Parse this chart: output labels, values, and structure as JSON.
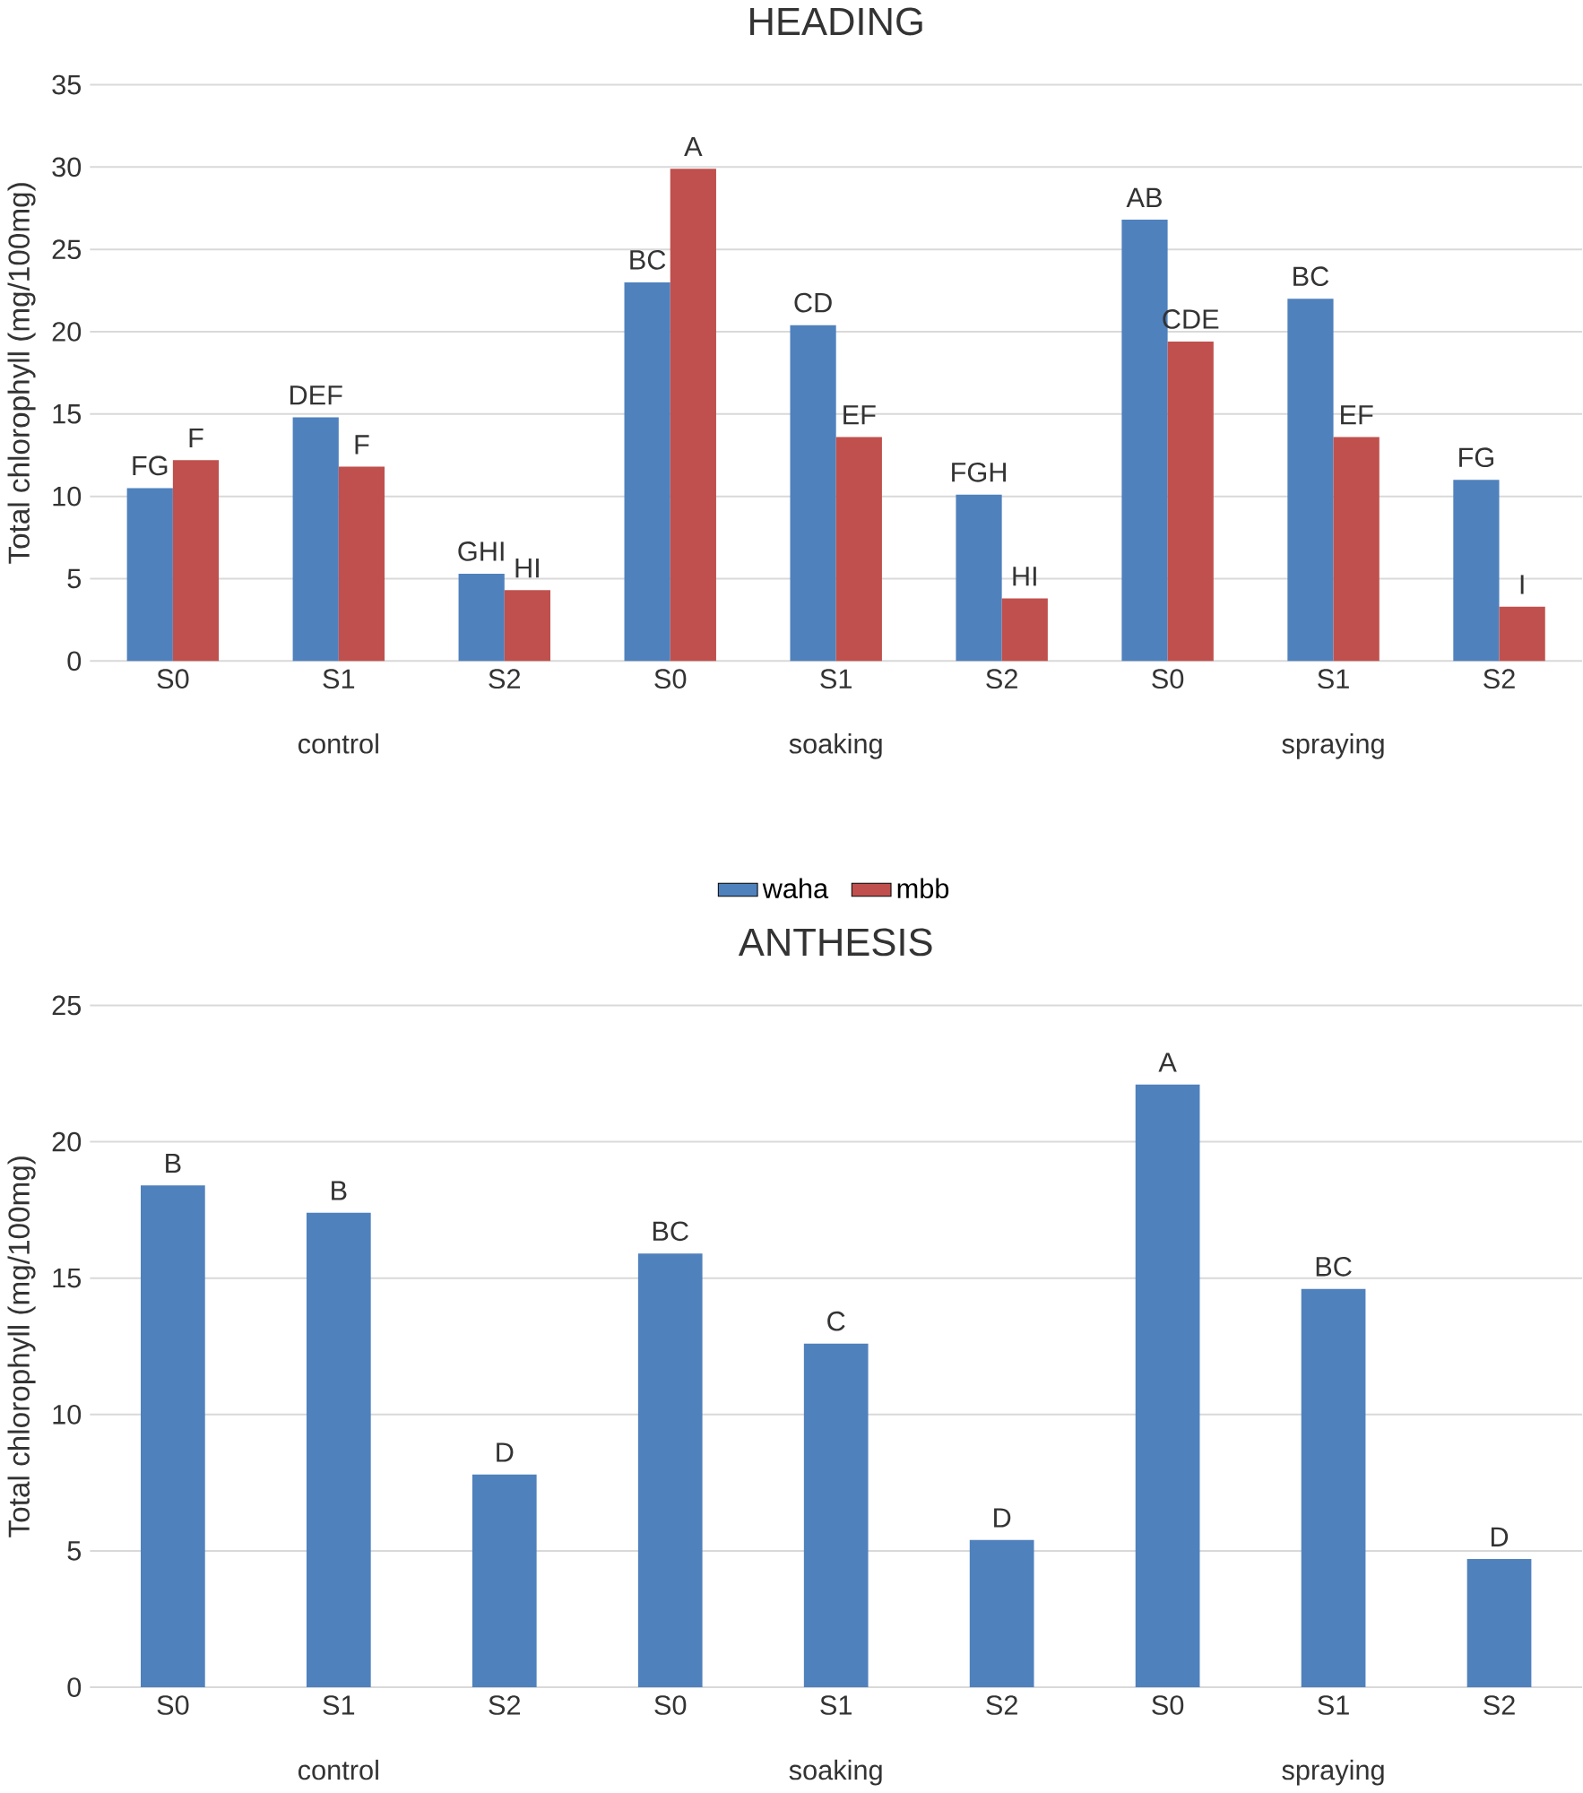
{
  "chart_data": [
    {
      "type": "bar",
      "title": "HEADING",
      "ylabel": "Total chlorophyll (mg/100mg)",
      "categories": [
        "S0",
        "S1",
        "S2",
        "S0",
        "S1",
        "S2",
        "S0",
        "S1",
        "S2"
      ],
      "series": [
        {
          "name": "waha",
          "color": "#4f81bd",
          "values": [
            10.5,
            14.8,
            5.3,
            23,
            20.4,
            10.1,
            26.8,
            22,
            11
          ],
          "value_labels": [
            "FG",
            "DEF",
            "GHI",
            "BC",
            "CD",
            "FGH",
            "AB",
            "BC",
            "FG"
          ]
        },
        {
          "name": "mbb",
          "color": "#c0504d",
          "values": [
            12.2,
            11.8,
            4.3,
            29.9,
            13.6,
            3.8,
            19.4,
            13.6,
            3.3
          ],
          "value_labels": [
            "F",
            "F",
            "HI",
            "A",
            "EF",
            "HI",
            "CDE",
            "EF",
            "I"
          ]
        }
      ],
      "ylim": [
        0,
        35
      ],
      "yticks": [
        0,
        5,
        10,
        15,
        20,
        25,
        30,
        35
      ],
      "grid": "y",
      "legend": "bottom",
      "annotations": [
        "control",
        "soaking",
        "spraying"
      ]
    },
    {
      "type": "bar",
      "title": "ANTHESIS",
      "ylabel": "Total chlorophyll (mg/100mg)",
      "categories": [
        "S0",
        "S1",
        "S2",
        "S0",
        "S1",
        "S2",
        "S0",
        "S1",
        "S2"
      ],
      "series": [
        {
          "color": "#4f81bd",
          "values": [
            18.4,
            17.4,
            7.8,
            15.9,
            12.6,
            5.4,
            22.1,
            14.6,
            4.7
          ],
          "value_labels": [
            "B",
            "B",
            "D",
            "BC",
            "C",
            "D",
            "A",
            "BC",
            "D"
          ]
        }
      ],
      "ylim": [
        0,
        25
      ],
      "yticks": [
        0,
        5,
        10,
        15,
        20,
        25
      ],
      "grid": "y",
      "annotations": [
        "control",
        "soaking",
        "spraying"
      ]
    }
  ]
}
